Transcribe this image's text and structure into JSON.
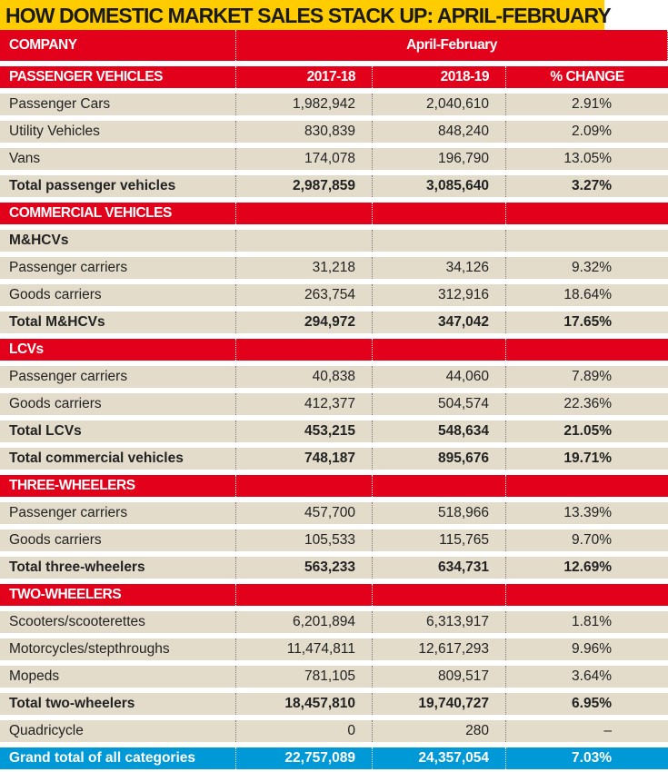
{
  "title": "HOW DOMESTIC MARKET SALES STACK UP: APRIL-FEBRUARY",
  "colors": {
    "title_bg": "#ffcc00",
    "header_red": "#e2001a",
    "row_beige": "#e3dccb",
    "grand_total_blue": "#0099d8"
  },
  "header": {
    "company": "COMPANY",
    "period": "April-February"
  },
  "rows": [
    {
      "type": "red",
      "label": "PASSENGER VEHICLES",
      "v1": "2017-18",
      "v2": "2018-19",
      "v3": "% CHANGE"
    },
    {
      "type": "data",
      "label": "Passenger Cars",
      "v1": "1,982,942",
      "v2": "2,040,610",
      "v3": "2.91%"
    },
    {
      "type": "data",
      "label": "Utility Vehicles",
      "v1": "830,839",
      "v2": "848,240",
      "v3": "2.09%"
    },
    {
      "type": "data",
      "label": "Vans",
      "v1": "174,078",
      "v2": "196,790",
      "v3": "13.05%"
    },
    {
      "type": "total",
      "label": "Total passenger vehicles",
      "v1": "2,987,859",
      "v2": "3,085,640",
      "v3": "3.27%"
    },
    {
      "type": "red",
      "label": "COMMERCIAL VEHICLES",
      "v1": "",
      "v2": "",
      "v3": ""
    },
    {
      "type": "sub",
      "label": "M&HCVs",
      "v1": "",
      "v2": "",
      "v3": ""
    },
    {
      "type": "data",
      "label": "Passenger carriers",
      "v1": "31,218",
      "v2": "34,126",
      "v3": "9.32%"
    },
    {
      "type": "data",
      "label": "Goods carriers",
      "v1": "263,754",
      "v2": "312,916",
      "v3": "18.64%"
    },
    {
      "type": "total",
      "label": "Total M&HCVs",
      "v1": "294,972",
      "v2": "347,042",
      "v3": "17.65%"
    },
    {
      "type": "red",
      "label": "LCVs",
      "v1": "",
      "v2": "",
      "v3": ""
    },
    {
      "type": "data",
      "label": "Passenger carriers",
      "v1": "40,838",
      "v2": "44,060",
      "v3": "7.89%"
    },
    {
      "type": "data",
      "label": "Goods carriers",
      "v1": "412,377",
      "v2": "504,574",
      "v3": "22.36%"
    },
    {
      "type": "total",
      "label": "Total LCVs",
      "v1": "453,215",
      "v2": "548,634",
      "v3": "21.05%"
    },
    {
      "type": "total",
      "label": "Total commercial vehicles",
      "v1": "748,187",
      "v2": "895,676",
      "v3": "19.71%"
    },
    {
      "type": "red",
      "label": "THREE-WHEELERS",
      "v1": "",
      "v2": "",
      "v3": ""
    },
    {
      "type": "data",
      "label": "Passenger carriers",
      "v1": "457,700",
      "v2": "518,966",
      "v3": "13.39%"
    },
    {
      "type": "data",
      "label": "Goods carriers",
      "v1": "105,533",
      "v2": "115,765",
      "v3": "9.70%"
    },
    {
      "type": "total",
      "label": "Total three-wheelers",
      "v1": "563,233",
      "v2": "634,731",
      "v3": "12.69%"
    },
    {
      "type": "red",
      "label": "TWO-WHEELERS",
      "v1": "",
      "v2": "",
      "v3": ""
    },
    {
      "type": "data",
      "label": "Scooters/scooterettes",
      "v1": "6,201,894",
      "v2": "6,313,917",
      "v3": "1.81%"
    },
    {
      "type": "data",
      "label": "Motorcycles/stepthroughs",
      "v1": "11,474,811",
      "v2": "12,617,293",
      "v3": "9.96%"
    },
    {
      "type": "data",
      "label": "Mopeds",
      "v1": "781,105",
      "v2": "809,517",
      "v3": "3.64%"
    },
    {
      "type": "total",
      "label": "Total two-wheelers",
      "v1": "18,457,810",
      "v2": "19,740,727",
      "v3": "6.95%"
    },
    {
      "type": "data",
      "label": "Quadricycle",
      "v1": "0",
      "v2": "280",
      "v3": "–"
    },
    {
      "type": "blue",
      "label": "Grand total of all categories",
      "v1": "22,757,089",
      "v2": "24,357,054",
      "v3": "7.03%"
    }
  ]
}
